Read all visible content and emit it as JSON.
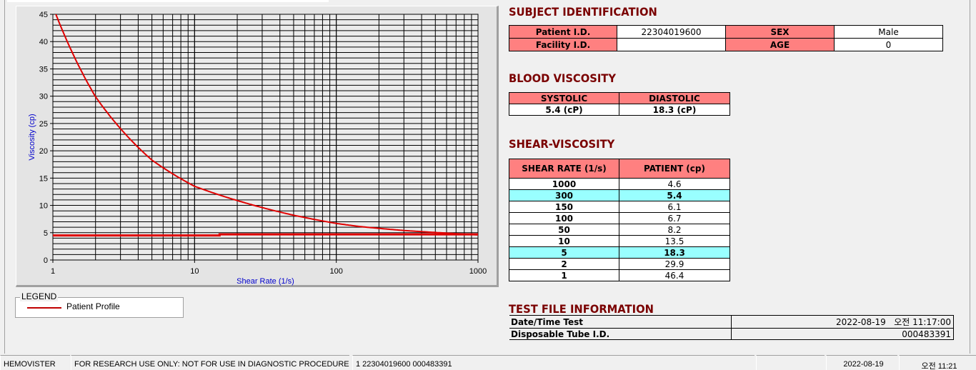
{
  "chart_data": {
    "type": "line",
    "xlabel": "Shear Rate (1/s)",
    "ylabel": "Viscosity (cp)",
    "x_scale": "log",
    "xlim": [
      1,
      1000
    ],
    "ylim": [
      0,
      45
    ],
    "x_ticks": [
      "1",
      "10",
      "100",
      "1000"
    ],
    "y_ticks": [
      "0",
      "5",
      "10",
      "15",
      "20",
      "25",
      "30",
      "35",
      "40",
      "45"
    ],
    "grid": true,
    "legend_title": "LEGEND",
    "legend_placement": "bottom-left",
    "series": [
      {
        "name": "Patient Profile",
        "color": "#e00000",
        "x": [
          1,
          2,
          5,
          10,
          50,
          100,
          150,
          300,
          1000
        ],
        "y": [
          46.4,
          29.9,
          18.3,
          13.5,
          8.2,
          6.7,
          6.1,
          5.4,
          4.6
        ]
      },
      {
        "color": "#e00000",
        "x": [
          1,
          15,
          15,
          1000
        ],
        "y": [
          4.5,
          4.5,
          4.7,
          4.7
        ]
      }
    ]
  },
  "subject": {
    "title": "SUBJECT IDENTIFICATION",
    "patient_id_label": "Patient I.D.",
    "patient_id": "22304019600",
    "sex_label": "SEX",
    "sex": "Male",
    "facility_id_label": "Facility I.D.",
    "facility_id": "",
    "age_label": "AGE",
    "age": "0"
  },
  "blood": {
    "title": "BLOOD VISCOSITY",
    "systolic_label": "SYSTOLIC",
    "diastolic_label": "DIASTOLIC",
    "systolic": "5.4 (cP)",
    "diastolic": "18.3 (cP)"
  },
  "shear": {
    "title": "SHEAR-VISCOSITY",
    "col1": "SHEAR RATE (1/s)",
    "col2": "PATIENT (cp)",
    "rows": [
      {
        "rate": "1000",
        "value": "4.6",
        "hl": false
      },
      {
        "rate": "300",
        "value": "5.4",
        "hl": true
      },
      {
        "rate": "150",
        "value": "6.1",
        "hl": false
      },
      {
        "rate": "100",
        "value": "6.7",
        "hl": false
      },
      {
        "rate": "50",
        "value": "8.2",
        "hl": false
      },
      {
        "rate": "10",
        "value": "13.5",
        "hl": false
      },
      {
        "rate": "5",
        "value": "18.3",
        "hl": true
      },
      {
        "rate": "2",
        "value": "29.9",
        "hl": false
      },
      {
        "rate": "1",
        "value": "46.4",
        "hl": false
      }
    ],
    "highlight_color": "#99ffff"
  },
  "testfile": {
    "title": "TEST FILE INFORMATION",
    "date_label": "Date/Time Test",
    "date": "2022-08-19   오전 11:17:00",
    "tube_label": "Disposable Tube I.D.",
    "tube": "000483391"
  },
  "statusbar": {
    "app": "HEMOVISTER",
    "notice": "FOR RESEARCH USE ONLY: NOT FOR USE IN DIAGNOSTIC PROCEDURES",
    "record": "1  22304019600  000483391",
    "date": "2022-08-19",
    "time": "오전 11:21"
  },
  "colors": {
    "header_cell": "#ff8080",
    "heading": "#7a0000",
    "curve": "#e00000",
    "axis_label": "#0000cc"
  }
}
